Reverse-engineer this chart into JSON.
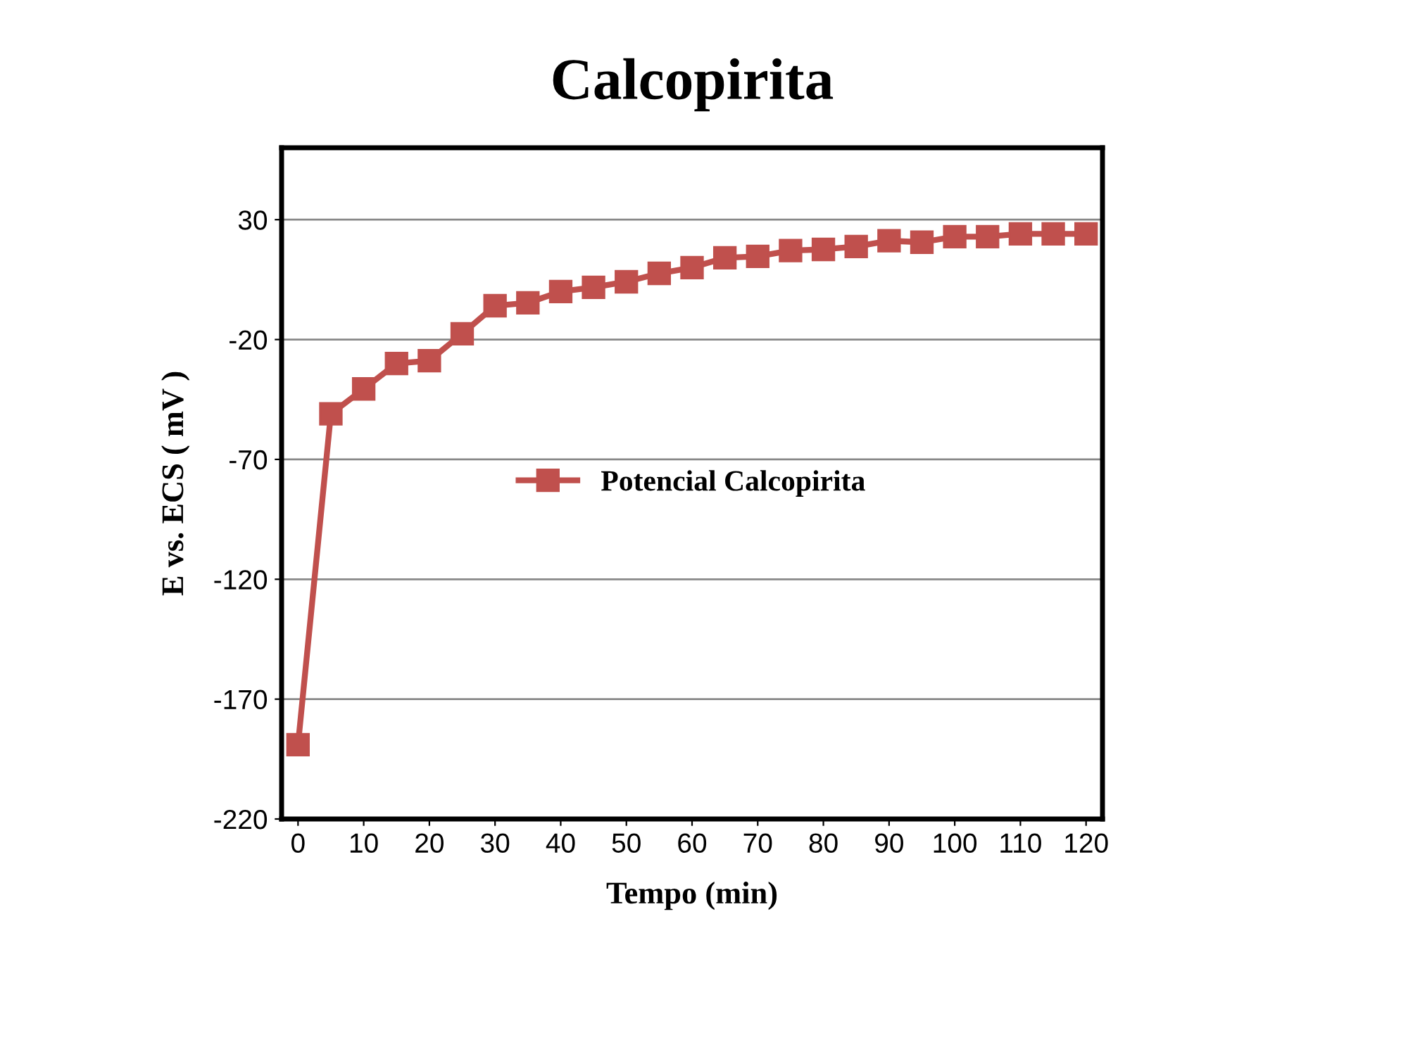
{
  "chart_data": {
    "type": "line",
    "title": "Calcopirita",
    "xlabel": "Tempo (min)",
    "ylabel": "E vs. ECS ( mV )",
    "x": [
      0,
      5,
      10,
      15,
      20,
      25,
      30,
      35,
      40,
      45,
      50,
      55,
      60,
      65,
      70,
      75,
      80,
      85,
      90,
      95,
      100,
      105,
      110,
      115,
      120
    ],
    "series": [
      {
        "name": "Potencial Calcopirita",
        "color": "#c0504d",
        "values": [
          -189,
          -51,
          -40.6,
          -30,
          -28.8,
          -17.6,
          -5.9,
          -4.7,
          0,
          1.8,
          4.1,
          7.6,
          10,
          14.1,
          14.7,
          17.1,
          17.6,
          18.8,
          21.2,
          20.6,
          22.9,
          22.9,
          24.1,
          24.1,
          24.1
        ]
      }
    ],
    "xlim": [
      -2.5,
      122.5
    ],
    "xticks": [
      0,
      10,
      20,
      30,
      40,
      50,
      60,
      70,
      80,
      90,
      100,
      110,
      120
    ],
    "ylim": [
      -220,
      60
    ],
    "yticks": [
      -220,
      -170,
      -120,
      -70,
      -20,
      30
    ],
    "grid": "y",
    "legend": "center",
    "marker": "square",
    "line_style": "solid"
  }
}
